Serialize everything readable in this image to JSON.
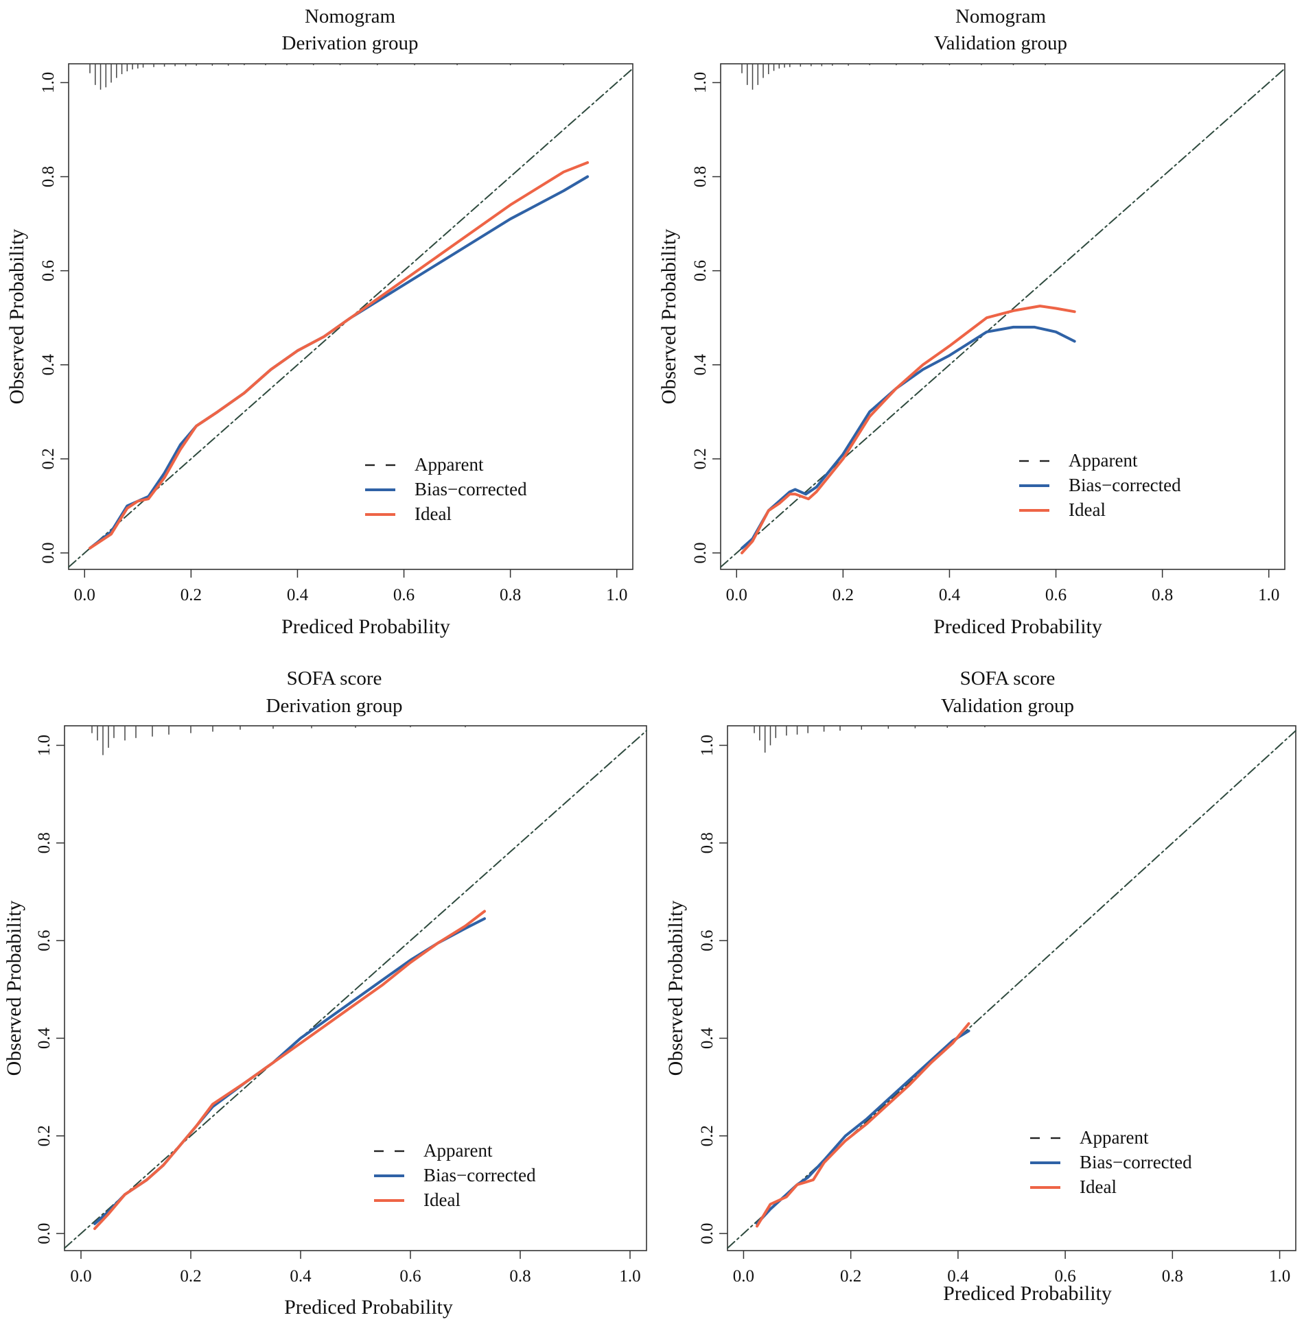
{
  "colors": {
    "apparent": "#2e4a3e",
    "bias_corrected": "#2f62a6",
    "ideal": "#ee6446",
    "rug": "#444444",
    "frame": "#333333"
  },
  "chart_data": [
    {
      "type": "line",
      "title": "Nomogram",
      "subtitle": "Derivation group",
      "xlabel": "Prediced Probability",
      "ylabel": "Observed Probability",
      "xlim": [
        -0.03,
        1.03
      ],
      "ylim": [
        -0.035,
        1.04
      ],
      "xticks": [
        "0.0",
        "0.2",
        "0.4",
        "0.6",
        "0.8",
        "1.0"
      ],
      "yticks": [
        "0.0",
        "0.2",
        "0.4",
        "0.6",
        "0.8",
        "1.0"
      ],
      "legend": [
        "Apparent",
        "Bias−corrected",
        "Ideal"
      ],
      "legend_position": "bottom-right",
      "rug": [
        [
          0.01,
          0.02
        ],
        [
          0.02,
          0.045
        ],
        [
          0.03,
          0.055
        ],
        [
          0.04,
          0.05
        ],
        [
          0.05,
          0.04
        ],
        [
          0.06,
          0.03
        ],
        [
          0.07,
          0.022
        ],
        [
          0.08,
          0.016
        ],
        [
          0.09,
          0.012
        ],
        [
          0.1,
          0.01
        ],
        [
          0.11,
          0.008
        ],
        [
          0.13,
          0.007
        ],
        [
          0.15,
          0.006
        ],
        [
          0.17,
          0.005
        ],
        [
          0.19,
          0.005
        ],
        [
          0.21,
          0.004
        ],
        [
          0.24,
          0.004
        ],
        [
          0.27,
          0.004
        ],
        [
          0.3,
          0.003
        ],
        [
          0.34,
          0.003
        ],
        [
          0.38,
          0.003
        ],
        [
          0.43,
          0.003
        ],
        [
          0.48,
          0.003
        ],
        [
          0.55,
          0.003
        ],
        [
          0.62,
          0.003
        ],
        [
          0.7,
          0.003
        ],
        [
          0.8,
          0.003
        ],
        [
          0.9,
          0.003
        ]
      ],
      "series": [
        {
          "name": "Apparent",
          "x": [
            0.0,
            1.0
          ],
          "y": [
            0.0,
            1.0
          ]
        },
        {
          "name": "Bias−corrected",
          "x": [
            0.01,
            0.05,
            0.08,
            0.1,
            0.12,
            0.15,
            0.18,
            0.21,
            0.25,
            0.3,
            0.35,
            0.4,
            0.45,
            0.5,
            0.6,
            0.7,
            0.8,
            0.9,
            0.945
          ],
          "y": [
            0.01,
            0.045,
            0.1,
            0.11,
            0.12,
            0.17,
            0.23,
            0.27,
            0.3,
            0.34,
            0.39,
            0.43,
            0.46,
            0.5,
            0.57,
            0.64,
            0.71,
            0.77,
            0.8
          ]
        },
        {
          "name": "Ideal",
          "x": [
            0.01,
            0.05,
            0.08,
            0.1,
            0.12,
            0.15,
            0.18,
            0.21,
            0.25,
            0.3,
            0.35,
            0.4,
            0.45,
            0.5,
            0.6,
            0.7,
            0.8,
            0.9,
            0.945
          ],
          "y": [
            0.01,
            0.04,
            0.095,
            0.11,
            0.115,
            0.16,
            0.22,
            0.27,
            0.3,
            0.34,
            0.39,
            0.43,
            0.46,
            0.5,
            0.58,
            0.66,
            0.74,
            0.81,
            0.83
          ]
        }
      ]
    },
    {
      "type": "line",
      "title": "Nomogram",
      "subtitle": "Validation group",
      "xlabel": "Prediced Probability",
      "ylabel": "Observed Probability",
      "xlim": [
        -0.03,
        1.03
      ],
      "ylim": [
        -0.035,
        1.04
      ],
      "xticks": [
        "0.0",
        "0.2",
        "0.4",
        "0.6",
        "0.8",
        "1.0"
      ],
      "yticks": [
        "0.0",
        "0.2",
        "0.4",
        "0.6",
        "0.8",
        "1.0"
      ],
      "legend": [
        "Apparent",
        "Bias−corrected",
        "Ideal"
      ],
      "legend_position": "bottom-right",
      "rug": [
        [
          0.01,
          0.02
        ],
        [
          0.02,
          0.045
        ],
        [
          0.03,
          0.055
        ],
        [
          0.04,
          0.045
        ],
        [
          0.05,
          0.03
        ],
        [
          0.06,
          0.022
        ],
        [
          0.07,
          0.015
        ],
        [
          0.08,
          0.01
        ],
        [
          0.09,
          0.008
        ],
        [
          0.1,
          0.007
        ],
        [
          0.12,
          0.006
        ],
        [
          0.14,
          0.005
        ],
        [
          0.16,
          0.005
        ],
        [
          0.18,
          0.004
        ],
        [
          0.21,
          0.004
        ],
        [
          0.25,
          0.003
        ],
        [
          0.3,
          0.003
        ],
        [
          0.35,
          0.003
        ],
        [
          0.4,
          0.003
        ],
        [
          0.46,
          0.003
        ],
        [
          0.52,
          0.003
        ],
        [
          0.58,
          0.003
        ]
      ],
      "series": [
        {
          "name": "Apparent",
          "x": [
            0.0,
            1.0
          ],
          "y": [
            0.0,
            1.0
          ]
        },
        {
          "name": "Bias−corrected",
          "x": [
            0.01,
            0.03,
            0.06,
            0.08,
            0.1,
            0.11,
            0.13,
            0.15,
            0.2,
            0.25,
            0.3,
            0.35,
            0.4,
            0.47,
            0.52,
            0.56,
            0.6,
            0.635
          ],
          "y": [
            0.01,
            0.03,
            0.09,
            0.11,
            0.13,
            0.135,
            0.125,
            0.14,
            0.21,
            0.3,
            0.35,
            0.39,
            0.42,
            0.47,
            0.48,
            0.48,
            0.47,
            0.45
          ]
        },
        {
          "name": "Ideal",
          "x": [
            0.01,
            0.03,
            0.06,
            0.08,
            0.1,
            0.11,
            0.135,
            0.15,
            0.2,
            0.25,
            0.3,
            0.35,
            0.4,
            0.47,
            0.52,
            0.57,
            0.6,
            0.635
          ],
          "y": [
            0.0,
            0.025,
            0.09,
            0.105,
            0.125,
            0.125,
            0.115,
            0.13,
            0.2,
            0.29,
            0.35,
            0.4,
            0.44,
            0.5,
            0.515,
            0.525,
            0.52,
            0.513
          ]
        }
      ]
    },
    {
      "type": "line",
      "title": "SOFA score",
      "subtitle": "Derivation group",
      "xlabel": "Prediced Probability",
      "ylabel": "Observed Probability",
      "xlim": [
        -0.03,
        1.03
      ],
      "ylim": [
        -0.035,
        1.04
      ],
      "xticks": [
        "0.0",
        "0.2",
        "0.4",
        "0.6",
        "0.8",
        "1.0"
      ],
      "yticks": [
        "0.0",
        "0.2",
        "0.4",
        "0.6",
        "0.8",
        "1.0"
      ],
      "legend": [
        "Apparent",
        "Bias−corrected",
        "Ideal"
      ],
      "legend_position": "bottom-right",
      "rug": [
        [
          0.02,
          0.015
        ],
        [
          0.03,
          0.03
        ],
        [
          0.04,
          0.06
        ],
        [
          0.05,
          0.045
        ],
        [
          0.06,
          0.025
        ],
        [
          0.08,
          0.03
        ],
        [
          0.1,
          0.025
        ],
        [
          0.13,
          0.022
        ],
        [
          0.16,
          0.018
        ],
        [
          0.2,
          0.015
        ],
        [
          0.24,
          0.012
        ],
        [
          0.29,
          0.008
        ],
        [
          0.35,
          0.006
        ],
        [
          0.42,
          0.005
        ],
        [
          0.5,
          0.004
        ],
        [
          0.6,
          0.003
        ],
        [
          0.7,
          0.003
        ]
      ],
      "series": [
        {
          "name": "Apparent",
          "x": [
            0.0,
            1.0
          ],
          "y": [
            0.0,
            1.0
          ]
        },
        {
          "name": "Bias−corrected",
          "x": [
            0.025,
            0.05,
            0.08,
            0.12,
            0.15,
            0.18,
            0.21,
            0.24,
            0.3,
            0.35,
            0.4,
            0.45,
            0.5,
            0.55,
            0.6,
            0.65,
            0.7,
            0.735
          ],
          "y": [
            0.02,
            0.045,
            0.08,
            0.11,
            0.14,
            0.18,
            0.22,
            0.26,
            0.31,
            0.35,
            0.4,
            0.44,
            0.48,
            0.52,
            0.56,
            0.595,
            0.625,
            0.645
          ]
        },
        {
          "name": "Ideal",
          "x": [
            0.025,
            0.05,
            0.08,
            0.12,
            0.15,
            0.18,
            0.21,
            0.24,
            0.3,
            0.35,
            0.4,
            0.45,
            0.5,
            0.55,
            0.6,
            0.65,
            0.7,
            0.735
          ],
          "y": [
            0.01,
            0.04,
            0.08,
            0.11,
            0.14,
            0.18,
            0.22,
            0.265,
            0.31,
            0.35,
            0.39,
            0.43,
            0.47,
            0.51,
            0.555,
            0.595,
            0.63,
            0.66
          ]
        }
      ]
    },
    {
      "type": "line",
      "title": "SOFA score",
      "subtitle": "Validation group",
      "xlabel": "Prediced Probability",
      "ylabel": "Observed Probability",
      "xlim": [
        -0.03,
        1.03
      ],
      "ylim": [
        -0.035,
        1.04
      ],
      "xticks": [
        "0.0",
        "0.2",
        "0.4",
        "0.6",
        "0.8",
        "1.0"
      ],
      "yticks": [
        "0.0",
        "0.2",
        "0.4",
        "0.6",
        "0.8",
        "1.0"
      ],
      "legend": [
        "Apparent",
        "Bias−corrected",
        "Ideal"
      ],
      "legend_position": "bottom-right",
      "rug": [
        [
          0.02,
          0.015
        ],
        [
          0.03,
          0.03
        ],
        [
          0.04,
          0.055
        ],
        [
          0.05,
          0.04
        ],
        [
          0.06,
          0.025
        ],
        [
          0.08,
          0.02
        ],
        [
          0.1,
          0.018
        ],
        [
          0.12,
          0.015
        ],
        [
          0.15,
          0.012
        ],
        [
          0.18,
          0.01
        ],
        [
          0.22,
          0.008
        ],
        [
          0.27,
          0.006
        ],
        [
          0.32,
          0.005
        ],
        [
          0.38,
          0.004
        ],
        [
          0.45,
          0.003
        ]
      ],
      "series": [
        {
          "name": "Apparent",
          "x": [
            0.0,
            1.0
          ],
          "y": [
            0.0,
            1.0
          ]
        },
        {
          "name": "Bias−corrected",
          "x": [
            0.025,
            0.05,
            0.08,
            0.1,
            0.12,
            0.15,
            0.19,
            0.23,
            0.27,
            0.31,
            0.35,
            0.39,
            0.42
          ],
          "y": [
            0.02,
            0.05,
            0.08,
            0.1,
            0.115,
            0.15,
            0.2,
            0.235,
            0.275,
            0.315,
            0.355,
            0.395,
            0.415
          ]
        },
        {
          "name": "Ideal",
          "x": [
            0.025,
            0.05,
            0.08,
            0.1,
            0.115,
            0.13,
            0.15,
            0.19,
            0.23,
            0.27,
            0.31,
            0.35,
            0.39,
            0.42
          ],
          "y": [
            0.015,
            0.06,
            0.075,
            0.1,
            0.105,
            0.11,
            0.145,
            0.19,
            0.225,
            0.265,
            0.305,
            0.35,
            0.39,
            0.43
          ]
        }
      ]
    }
  ]
}
